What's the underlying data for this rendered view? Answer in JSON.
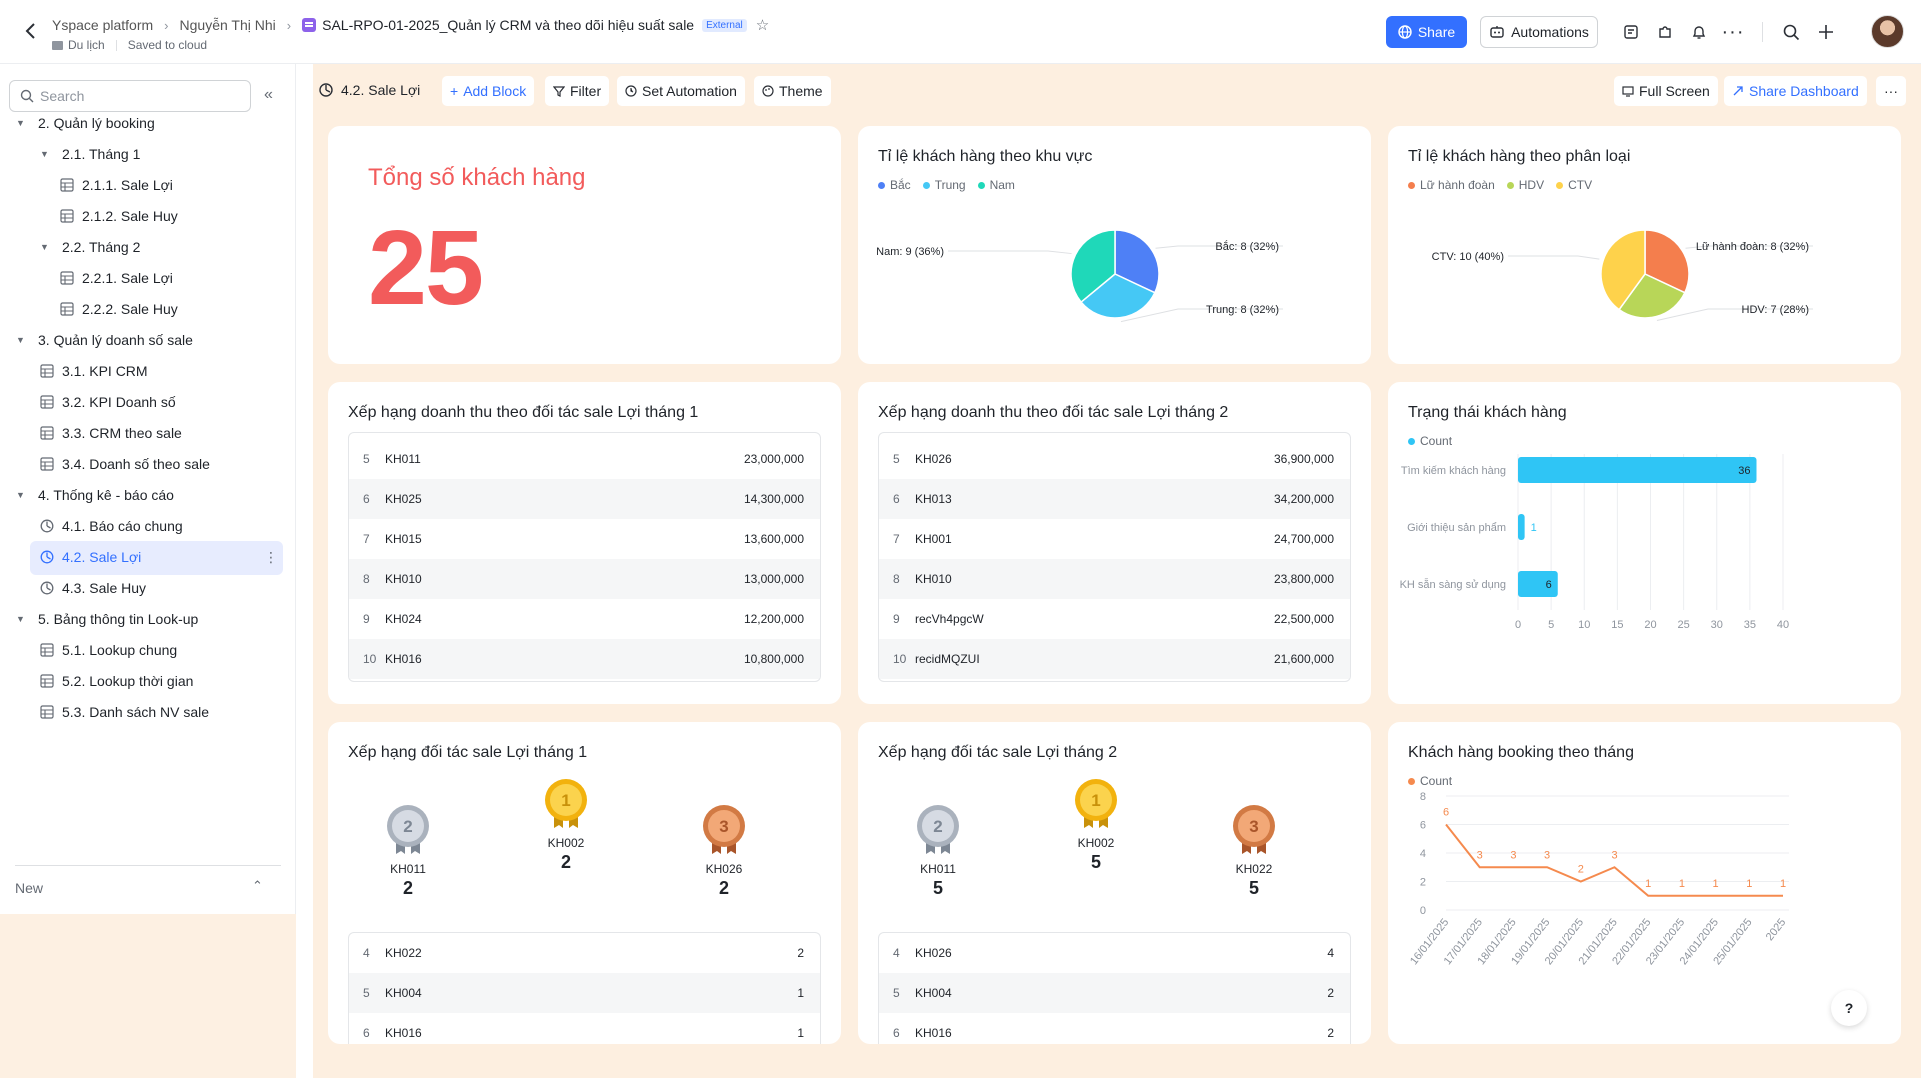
{
  "header": {
    "breadcrumb": [
      "Yspace platform",
      "Nguyễn Thị Nhi"
    ],
    "doc_title": "SAL-RPO-01-2025_Quản lý CRM và theo dõi hiệu suất sale",
    "badge": "External",
    "folder": "Du lịch",
    "save_status": "Saved to cloud",
    "share_label": "Share",
    "automations_label": "Automations",
    "accent": "#3370ff"
  },
  "sidebar": {
    "search_placeholder": "Search",
    "items": [
      {
        "label": "2. Quản lý booking",
        "icon": "caret-down"
      },
      {
        "label": "2.1. Tháng 1",
        "icon": "caret-down"
      },
      {
        "label": "2.1.1. Sale Lợi",
        "icon": "table-icon"
      },
      {
        "label": "2.1.2. Sale Huy",
        "icon": "table-icon"
      },
      {
        "label": "2.2. Tháng 2",
        "icon": "caret-down"
      },
      {
        "label": "2.2.1. Sale Lợi",
        "icon": "table-icon"
      },
      {
        "label": "2.2.2. Sale Huy",
        "icon": "table-icon"
      },
      {
        "label": "3. Quản lý doanh số sale",
        "icon": "caret-down"
      },
      {
        "label": "3.1. KPI CRM",
        "icon": "table-icon"
      },
      {
        "label": "3.2. KPI Doanh số",
        "icon": "table-icon"
      },
      {
        "label": "3.3. CRM theo sale",
        "icon": "table-icon"
      },
      {
        "label": "3.4. Doanh số theo sale",
        "icon": "table-icon"
      },
      {
        "label": "4. Thống kê - báo cáo",
        "icon": "caret-down"
      },
      {
        "label": "4.1. Báo cáo chung",
        "icon": "dashboard-icon"
      },
      {
        "label": "4.2. Sale Lợi",
        "icon": "dashboard-icon",
        "active": true
      },
      {
        "label": "4.3. Sale Huy",
        "icon": "dashboard-icon"
      },
      {
        "label": "5. Bảng thông tin Look-up",
        "icon": "caret-down"
      },
      {
        "label": "5.1. Lookup chung",
        "icon": "table-icon"
      },
      {
        "label": "5.2. Lookup thời gian",
        "icon": "table-icon"
      },
      {
        "label": "5.3. Danh sách NV sale",
        "icon": "table-icon"
      }
    ],
    "new_label": "New"
  },
  "toolbar": {
    "title": "4.2. Sale Lợi",
    "add_block": "Add Block",
    "filter": "Filter",
    "set_automation": "Set Automation",
    "theme": "Theme",
    "full_screen": "Full Screen",
    "share_dashboard": "Share Dashboard"
  },
  "cards": {
    "total": {
      "title": "Tổng số khách hàng",
      "value": "25"
    },
    "region": {
      "title": "Tỉ lệ khách hàng theo khu vực",
      "legend": [
        "Bắc",
        "Trung",
        "Nam"
      ],
      "labels": [
        "Bắc: 8 (32%)",
        "Trung: 8 (32%)",
        "Nam: 9 (36%)"
      ]
    },
    "category": {
      "title": "Tỉ lệ khách hàng theo phân loại",
      "legend": [
        "Lữ hành đoàn",
        "HDV",
        "CTV"
      ],
      "labels": [
        "Lữ hành đoàn: 8 (32%)",
        "HDV: 7 (28%)",
        "CTV: 10 (40%)"
      ]
    },
    "rev1": {
      "title": "Xếp hạng doanh thu theo đối tác sale Lợi tháng 1",
      "rows": [
        [
          "5",
          "KH011",
          "23,000,000"
        ],
        [
          "6",
          "KH025",
          "14,300,000"
        ],
        [
          "7",
          "KH015",
          "13,600,000"
        ],
        [
          "8",
          "KH010",
          "13,000,000"
        ],
        [
          "9",
          "KH024",
          "12,200,000"
        ],
        [
          "10",
          "KH016",
          "10,800,000"
        ]
      ]
    },
    "rev2": {
      "title": "Xếp hạng doanh thu theo đối tác sale Lợi tháng 2",
      "rows": [
        [
          "5",
          "KH026",
          "36,900,000"
        ],
        [
          "6",
          "KH013",
          "34,200,000"
        ],
        [
          "7",
          "KH001",
          "24,700,000"
        ],
        [
          "8",
          "KH010",
          "23,800,000"
        ],
        [
          "9",
          "recVh4pgcW",
          "22,500,000"
        ],
        [
          "10",
          "recidMQZUI",
          "21,600,000"
        ]
      ]
    },
    "status": {
      "title": "Trạng thái khách hàng",
      "legend": "Count"
    },
    "rank1": {
      "title": "Xếp hạng đối tác sale Lợi tháng 1",
      "podium": [
        {
          "rank": "2",
          "name": "KH011",
          "value": "2"
        },
        {
          "rank": "1",
          "name": "KH002",
          "value": "2"
        },
        {
          "rank": "3",
          "name": "KH026",
          "value": "2"
        }
      ],
      "rows": [
        [
          "4",
          "KH022",
          "2"
        ],
        [
          "5",
          "KH004",
          "1"
        ],
        [
          "6",
          "KH016",
          "1"
        ]
      ]
    },
    "rank2": {
      "title": "Xếp hạng đối tác sale Lợi tháng 2",
      "podium": [
        {
          "rank": "2",
          "name": "KH011",
          "value": "5"
        },
        {
          "rank": "1",
          "name": "KH002",
          "value": "5"
        },
        {
          "rank": "3",
          "name": "KH022",
          "value": "5"
        }
      ],
      "rows": [
        [
          "4",
          "KH026",
          "4"
        ],
        [
          "5",
          "KH004",
          "2"
        ],
        [
          "6",
          "KH016",
          "2"
        ]
      ]
    },
    "booking": {
      "title": "Khách hàng booking theo tháng",
      "legend": "Count"
    }
  },
  "chart_data": [
    {
      "type": "pie",
      "title": "Tỉ lệ khách hàng theo khu vực",
      "categories": [
        "Bắc",
        "Trung",
        "Nam"
      ],
      "values": [
        8,
        8,
        9
      ],
      "colors": [
        "#4e80f6",
        "#45c8f5",
        "#1fd8b9"
      ]
    },
    {
      "type": "pie",
      "title": "Tỉ lệ khách hàng theo phân loại",
      "categories": [
        "Lữ hành đoàn",
        "HDV",
        "CTV"
      ],
      "values": [
        8,
        7,
        10
      ],
      "colors": [
        "#f47e4d",
        "#b8d658",
        "#fed24b"
      ]
    },
    {
      "type": "bar",
      "orientation": "horizontal",
      "title": "Trạng thái khách hàng",
      "categories": [
        "Tìm kiếm khách hàng",
        "Giới thiệu sản phẩm",
        "KH sẵn sàng sử dụng"
      ],
      "series": [
        {
          "name": "Count",
          "values": [
            36,
            1,
            6
          ]
        }
      ],
      "xlim": [
        0,
        40
      ],
      "ticks": [
        0,
        5,
        10,
        15,
        20,
        25,
        30,
        35,
        40
      ],
      "color": "#2fc5f5",
      "grid": true
    },
    {
      "type": "line",
      "title": "Khách hàng booking theo tháng",
      "x": [
        "16/01/2025",
        "17/01/2025",
        "18/01/2025",
        "19/01/2025",
        "20/01/2025",
        "21/01/2025",
        "22/01/2025",
        "23/01/2025",
        "24/01/2025",
        "25/01/2025",
        "2025"
      ],
      "series": [
        {
          "name": "Count",
          "values": [
            6,
            3,
            3,
            3,
            2,
            3,
            1,
            1,
            1,
            1,
            1
          ]
        }
      ],
      "ylim": [
        0,
        8
      ],
      "ticks": [
        0,
        2,
        4,
        6,
        8
      ],
      "color": "#f58a4e",
      "grid": true
    }
  ]
}
